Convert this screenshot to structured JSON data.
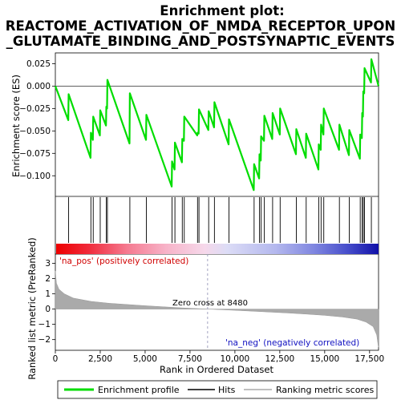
{
  "title_lines": [
    "Enrichment plot:",
    "REACTOME_ACTIVATION_OF_NMDA_RECEPTOR_UPON",
    "_GLUTAMATE_BINDING_AND_POSTSYNAPTIC_EVENTS"
  ],
  "colors": {
    "enrichment_line": "#00dd00",
    "hits": "#000000",
    "ranking_fill": "#aaaaaa",
    "zero_cross_line": "#9999bb",
    "pos_label": "#d00000",
    "neg_label": "#1010c0"
  },
  "chart_data": [
    {
      "type": "line",
      "name": "enrichment-profile",
      "ylabel": "Enrichment score (ES)",
      "xlim": [
        0,
        18000
      ],
      "ylim": [
        -0.123,
        0.037
      ],
      "y_ticks": [
        -0.1,
        -0.075,
        -0.05,
        -0.025,
        0.0,
        0.025
      ],
      "y_tick_labels": [
        "−0.100",
        "−0.075",
        "−0.050",
        "−0.025",
        "0.000",
        "0.025"
      ],
      "grid": false,
      "points": [
        [
          0,
          0.0
        ],
        [
          720,
          -0.038
        ],
        [
          740,
          -0.009
        ],
        [
          1960,
          -0.08
        ],
        [
          1980,
          -0.052
        ],
        [
          2090,
          -0.06
        ],
        [
          2110,
          -0.034
        ],
        [
          2480,
          -0.055
        ],
        [
          2500,
          -0.027
        ],
        [
          2820,
          -0.044
        ],
        [
          2840,
          -0.023
        ],
        [
          2880,
          -0.025
        ],
        [
          2900,
          0.007
        ],
        [
          4130,
          -0.064
        ],
        [
          4150,
          -0.008
        ],
        [
          5050,
          -0.06
        ],
        [
          5070,
          -0.032
        ],
        [
          6480,
          -0.112
        ],
        [
          6500,
          -0.084
        ],
        [
          6640,
          -0.093
        ],
        [
          6660,
          -0.063
        ],
        [
          7050,
          -0.085
        ],
        [
          7070,
          -0.059
        ],
        [
          7160,
          -0.061
        ],
        [
          7180,
          -0.034
        ],
        [
          7900,
          -0.055
        ],
        [
          7920,
          -0.052
        ],
        [
          7980,
          -0.053
        ],
        [
          8000,
          -0.026
        ],
        [
          8520,
          -0.049
        ],
        [
          8540,
          -0.028
        ],
        [
          8840,
          -0.046
        ],
        [
          8860,
          -0.018
        ],
        [
          9650,
          -0.065
        ],
        [
          9670,
          -0.037
        ],
        [
          11050,
          -0.116
        ],
        [
          11070,
          -0.087
        ],
        [
          11350,
          -0.103
        ],
        [
          11370,
          -0.076
        ],
        [
          11440,
          -0.083
        ],
        [
          11460,
          -0.056
        ],
        [
          11620,
          -0.061
        ],
        [
          11640,
          -0.033
        ],
        [
          12080,
          -0.059
        ],
        [
          12100,
          -0.03
        ],
        [
          12500,
          -0.054
        ],
        [
          12520,
          -0.025
        ],
        [
          13400,
          -0.076
        ],
        [
          13420,
          -0.048
        ],
        [
          13950,
          -0.08
        ],
        [
          13970,
          -0.053
        ],
        [
          14650,
          -0.093
        ],
        [
          14670,
          -0.065
        ],
        [
          14780,
          -0.071
        ],
        [
          14800,
          -0.043
        ],
        [
          14930,
          -0.054
        ],
        [
          14950,
          -0.025
        ],
        [
          15800,
          -0.071
        ],
        [
          15820,
          -0.043
        ],
        [
          16350,
          -0.077
        ],
        [
          16370,
          -0.049
        ],
        [
          16960,
          -0.081
        ],
        [
          16980,
          -0.054
        ],
        [
          17070,
          -0.058
        ],
        [
          17090,
          -0.03
        ],
        [
          17130,
          -0.034
        ],
        [
          17150,
          -0.006
        ],
        [
          17200,
          -0.008
        ],
        [
          17220,
          0.02
        ],
        [
          17580,
          0.004
        ],
        [
          17600,
          0.03
        ],
        [
          18000,
          0.0
        ]
      ]
    },
    {
      "type": "hits",
      "name": "hits",
      "xlim": [
        0,
        18000
      ],
      "positions": [
        740,
        1980,
        2110,
        2500,
        2840,
        2900,
        4150,
        5070,
        6500,
        6660,
        7070,
        7180,
        7920,
        8000,
        8540,
        8860,
        9670,
        11070,
        11370,
        11460,
        11640,
        12100,
        12520,
        13420,
        13970,
        14670,
        14800,
        14950,
        15820,
        16370,
        16980,
        17090,
        17150,
        17220,
        17600
      ]
    },
    {
      "type": "area",
      "name": "ranked-list-metric",
      "xlabel": "Rank in Ordered Dataset",
      "ylabel": "Ranked list metric (PreRanked)",
      "xlim": [
        0,
        18000
      ],
      "ylim": [
        -2.7,
        3.6
      ],
      "x_ticks": [
        0,
        2500,
        5000,
        7500,
        10000,
        12500,
        15000,
        17500
      ],
      "x_tick_labels": [
        "0",
        "2,500",
        "5,000",
        "7,500",
        "10,000",
        "12,500",
        "15,000",
        "17,500"
      ],
      "y_ticks": [
        -2,
        -1,
        0,
        1,
        2,
        3
      ],
      "y_tick_labels": [
        "−2",
        "−1",
        "0",
        "1",
        "2",
        "3"
      ],
      "points": [
        [
          0,
          2.5
        ],
        [
          60,
          1.7
        ],
        [
          200,
          1.3
        ],
        [
          500,
          1.0
        ],
        [
          1000,
          0.72
        ],
        [
          2000,
          0.5
        ],
        [
          3000,
          0.38
        ],
        [
          4000,
          0.3
        ],
        [
          5000,
          0.22
        ],
        [
          6000,
          0.15
        ],
        [
          7000,
          0.08
        ],
        [
          8480,
          0.0
        ],
        [
          10000,
          -0.08
        ],
        [
          11000,
          -0.14
        ],
        [
          12000,
          -0.2
        ],
        [
          13000,
          -0.26
        ],
        [
          14000,
          -0.33
        ],
        [
          15000,
          -0.41
        ],
        [
          16000,
          -0.52
        ],
        [
          16800,
          -0.66
        ],
        [
          17300,
          -0.85
        ],
        [
          17700,
          -1.15
        ],
        [
          17900,
          -1.7
        ],
        [
          17980,
          -2.4
        ],
        [
          18000,
          -2.5
        ]
      ],
      "zero_cross": 8480,
      "zero_cross_label": "Zero cross at 8480",
      "pos_label": "'na_pos' (positively correlated)",
      "neg_label": "'na_neg' (negatively correlated)"
    }
  ],
  "legend": {
    "items": [
      {
        "label": "Enrichment profile",
        "kind": "line",
        "color": "#00dd00"
      },
      {
        "label": "Hits",
        "kind": "line",
        "color": "#000000"
      },
      {
        "label": "Ranking metric scores",
        "kind": "line",
        "color": "#aaaaaa"
      }
    ]
  }
}
